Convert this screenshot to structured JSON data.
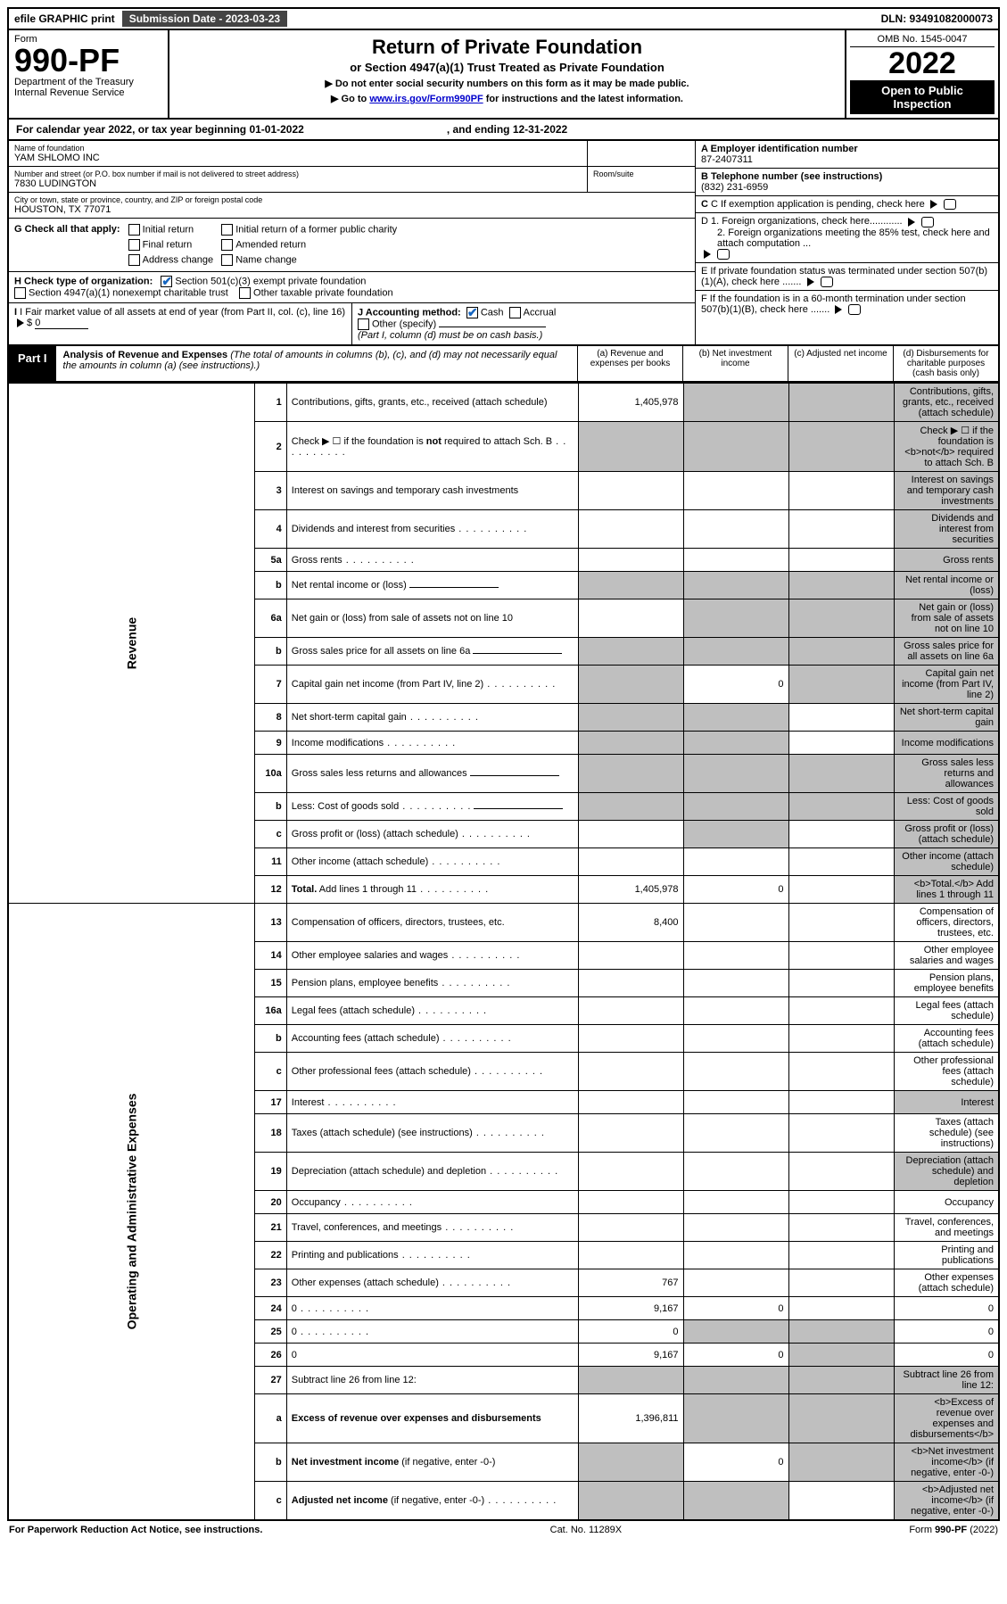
{
  "top": {
    "efile": "efile GRAPHIC print",
    "sub_label": "Submission Date - 2023-03-23",
    "dln": "DLN: 93491082000073"
  },
  "header": {
    "form_word": "Form",
    "form_no": "990-PF",
    "dept": "Department of the Treasury",
    "irs": "Internal Revenue Service",
    "title": "Return of Private Foundation",
    "subtitle": "or Section 4947(a)(1) Trust Treated as Private Foundation",
    "note1": "▶ Do not enter social security numbers on this form as it may be made public.",
    "note2_pre": "▶ Go to ",
    "note2_link": "www.irs.gov/Form990PF",
    "note2_post": " for instructions and the latest information.",
    "omb": "OMB No. 1545-0047",
    "year": "2022",
    "open": "Open to Public Inspection"
  },
  "cal": {
    "pre": "For calendar year 2022, or tax year beginning 01-01-2022",
    "mid": ", and ending 12-31-2022"
  },
  "info": {
    "name_label": "Name of foundation",
    "name": "YAM SHLOMO INC",
    "addr_label": "Number and street (or P.O. box number if mail is not delivered to street address)",
    "addr": "7830 LUDINGTON",
    "room_label": "Room/suite",
    "city_label": "City or town, state or province, country, and ZIP or foreign postal code",
    "city": "HOUSTON, TX  77071",
    "A_label": "A Employer identification number",
    "A_val": "87-2407311",
    "B_label": "B Telephone number (see instructions)",
    "B_val": "(832) 231-6959",
    "C_label": "C If exemption application is pending, check here",
    "D1": "D 1. Foreign organizations, check here............",
    "D2": "2. Foreign organizations meeting the 85% test, check here and attach computation ...",
    "E": "E  If private foundation status was terminated under section 507(b)(1)(A), check here .......",
    "F": "F  If the foundation is in a 60-month termination under section 507(b)(1)(B), check here .......",
    "G_label": "G Check all that apply:",
    "G_opts": [
      "Initial return",
      "Final return",
      "Address change",
      "Initial return of a former public charity",
      "Amended return",
      "Name change"
    ],
    "H_label": "H Check type of organization:",
    "H1": "Section 501(c)(3) exempt private foundation",
    "H2": "Section 4947(a)(1) nonexempt charitable trust",
    "H3": "Other taxable private foundation",
    "I_label": "I Fair market value of all assets at end of year (from Part II, col. (c), line 16)",
    "I_val": "0",
    "J_label": "J Accounting method:",
    "J_cash": "Cash",
    "J_accrual": "Accrual",
    "J_other": "Other (specify)",
    "J_note": "(Part I, column (d) must be on cash basis.)"
  },
  "part1": {
    "tag": "Part I",
    "title": "Analysis of Revenue and Expenses",
    "note": "(The total of amounts in columns (b), (c), and (d) may not necessarily equal the amounts in column (a) (see instructions).)",
    "col_a": "(a)   Revenue and expenses per books",
    "col_b": "(b)   Net investment income",
    "col_c": "(c)   Adjusted net income",
    "col_d": "(d)   Disbursements for charitable purposes (cash basis only)"
  },
  "side": {
    "rev": "Revenue",
    "exp": "Operating and Administrative Expenses"
  },
  "rows": [
    {
      "n": "1",
      "d": "Contributions, gifts, grants, etc., received (attach schedule)",
      "a": "1,405,978",
      "shade": [
        "b",
        "c",
        "d"
      ]
    },
    {
      "n": "2",
      "d": "Check ▶ ☐ if the foundation is <b>not</b> required to attach Sch. B",
      "dots": true,
      "shade": [
        "a",
        "b",
        "c",
        "d"
      ]
    },
    {
      "n": "3",
      "d": "Interest on savings and temporary cash investments",
      "shade": [
        "d"
      ]
    },
    {
      "n": "4",
      "d": "Dividends and interest from securities",
      "dots": true,
      "shade": [
        "d"
      ]
    },
    {
      "n": "5a",
      "d": "Gross rents",
      "dots": true,
      "shade": [
        "d"
      ]
    },
    {
      "n": "b",
      "d": "Net rental income or (loss)",
      "inline_blank": true,
      "shade": [
        "a",
        "b",
        "c",
        "d"
      ]
    },
    {
      "n": "6a",
      "d": "Net gain or (loss) from sale of assets not on line 10",
      "shade": [
        "b",
        "c",
        "d"
      ]
    },
    {
      "n": "b",
      "d": "Gross sales price for all assets on line 6a",
      "inline_blank": true,
      "shade": [
        "a",
        "b",
        "c",
        "d"
      ]
    },
    {
      "n": "7",
      "d": "Capital gain net income (from Part IV, line 2)",
      "dots": true,
      "b": "0",
      "shade": [
        "a",
        "c",
        "d"
      ]
    },
    {
      "n": "8",
      "d": "Net short-term capital gain",
      "dots": true,
      "shade": [
        "a",
        "b",
        "d"
      ]
    },
    {
      "n": "9",
      "d": "Income modifications",
      "dots": true,
      "shade": [
        "a",
        "b",
        "d"
      ]
    },
    {
      "n": "10a",
      "d": "Gross sales less returns and allowances",
      "inline_blank": true,
      "shade": [
        "a",
        "b",
        "c",
        "d"
      ]
    },
    {
      "n": "b",
      "d": "Less: Cost of goods sold",
      "dots": true,
      "inline_blank": true,
      "shade": [
        "a",
        "b",
        "c",
        "d"
      ]
    },
    {
      "n": "c",
      "d": "Gross profit or (loss) (attach schedule)",
      "dots": true,
      "shade": [
        "b",
        "d"
      ]
    },
    {
      "n": "11",
      "d": "Other income (attach schedule)",
      "dots": true,
      "shade": [
        "d"
      ]
    },
    {
      "n": "12",
      "d": "<b>Total.</b> Add lines 1 through 11",
      "dots": true,
      "a": "1,405,978",
      "b": "0",
      "shade": [
        "d"
      ]
    },
    {
      "n": "13",
      "d": "Compensation of officers, directors, trustees, etc.",
      "a": "8,400"
    },
    {
      "n": "14",
      "d": "Other employee salaries and wages",
      "dots": true
    },
    {
      "n": "15",
      "d": "Pension plans, employee benefits",
      "dots": true
    },
    {
      "n": "16a",
      "d": "Legal fees (attach schedule)",
      "dots": true
    },
    {
      "n": "b",
      "d": "Accounting fees (attach schedule)",
      "dots": true
    },
    {
      "n": "c",
      "d": "Other professional fees (attach schedule)",
      "dots": true
    },
    {
      "n": "17",
      "d": "Interest",
      "dots": true,
      "shade": [
        "d"
      ]
    },
    {
      "n": "18",
      "d": "Taxes (attach schedule) (see instructions)",
      "dots": true
    },
    {
      "n": "19",
      "d": "Depreciation (attach schedule) and depletion",
      "dots": true,
      "shade": [
        "d"
      ]
    },
    {
      "n": "20",
      "d": "Occupancy",
      "dots": true
    },
    {
      "n": "21",
      "d": "Travel, conferences, and meetings",
      "dots": true
    },
    {
      "n": "22",
      "d": "Printing and publications",
      "dots": true
    },
    {
      "n": "23",
      "d": "Other expenses (attach schedule)",
      "dots": true,
      "a": "767"
    },
    {
      "n": "24",
      "d": "0",
      "dots": true,
      "a": "9,167",
      "b": "0"
    },
    {
      "n": "25",
      "d": "0",
      "dots": true,
      "a": "0",
      "shade": [
        "b",
        "c"
      ]
    },
    {
      "n": "26",
      "d": "0",
      "a": "9,167",
      "b": "0",
      "shade": [
        "c"
      ]
    },
    {
      "n": "27",
      "d": "Subtract line 26 from line 12:",
      "shade": [
        "a",
        "b",
        "c",
        "d"
      ]
    },
    {
      "n": "a",
      "d": "<b>Excess of revenue over expenses and disbursements</b>",
      "a": "1,396,811",
      "shade": [
        "b",
        "c",
        "d"
      ]
    },
    {
      "n": "b",
      "d": "<b>Net investment income</b> (if negative, enter -0-)",
      "b": "0",
      "shade": [
        "a",
        "c",
        "d"
      ]
    },
    {
      "n": "c",
      "d": "<b>Adjusted net income</b> (if negative, enter -0-)",
      "dots": true,
      "shade": [
        "a",
        "b",
        "d"
      ]
    }
  ],
  "footer": {
    "left": "For Paperwork Reduction Act Notice, see instructions.",
    "mid": "Cat. No. 11289X",
    "right": "Form 990-PF (2022)"
  }
}
